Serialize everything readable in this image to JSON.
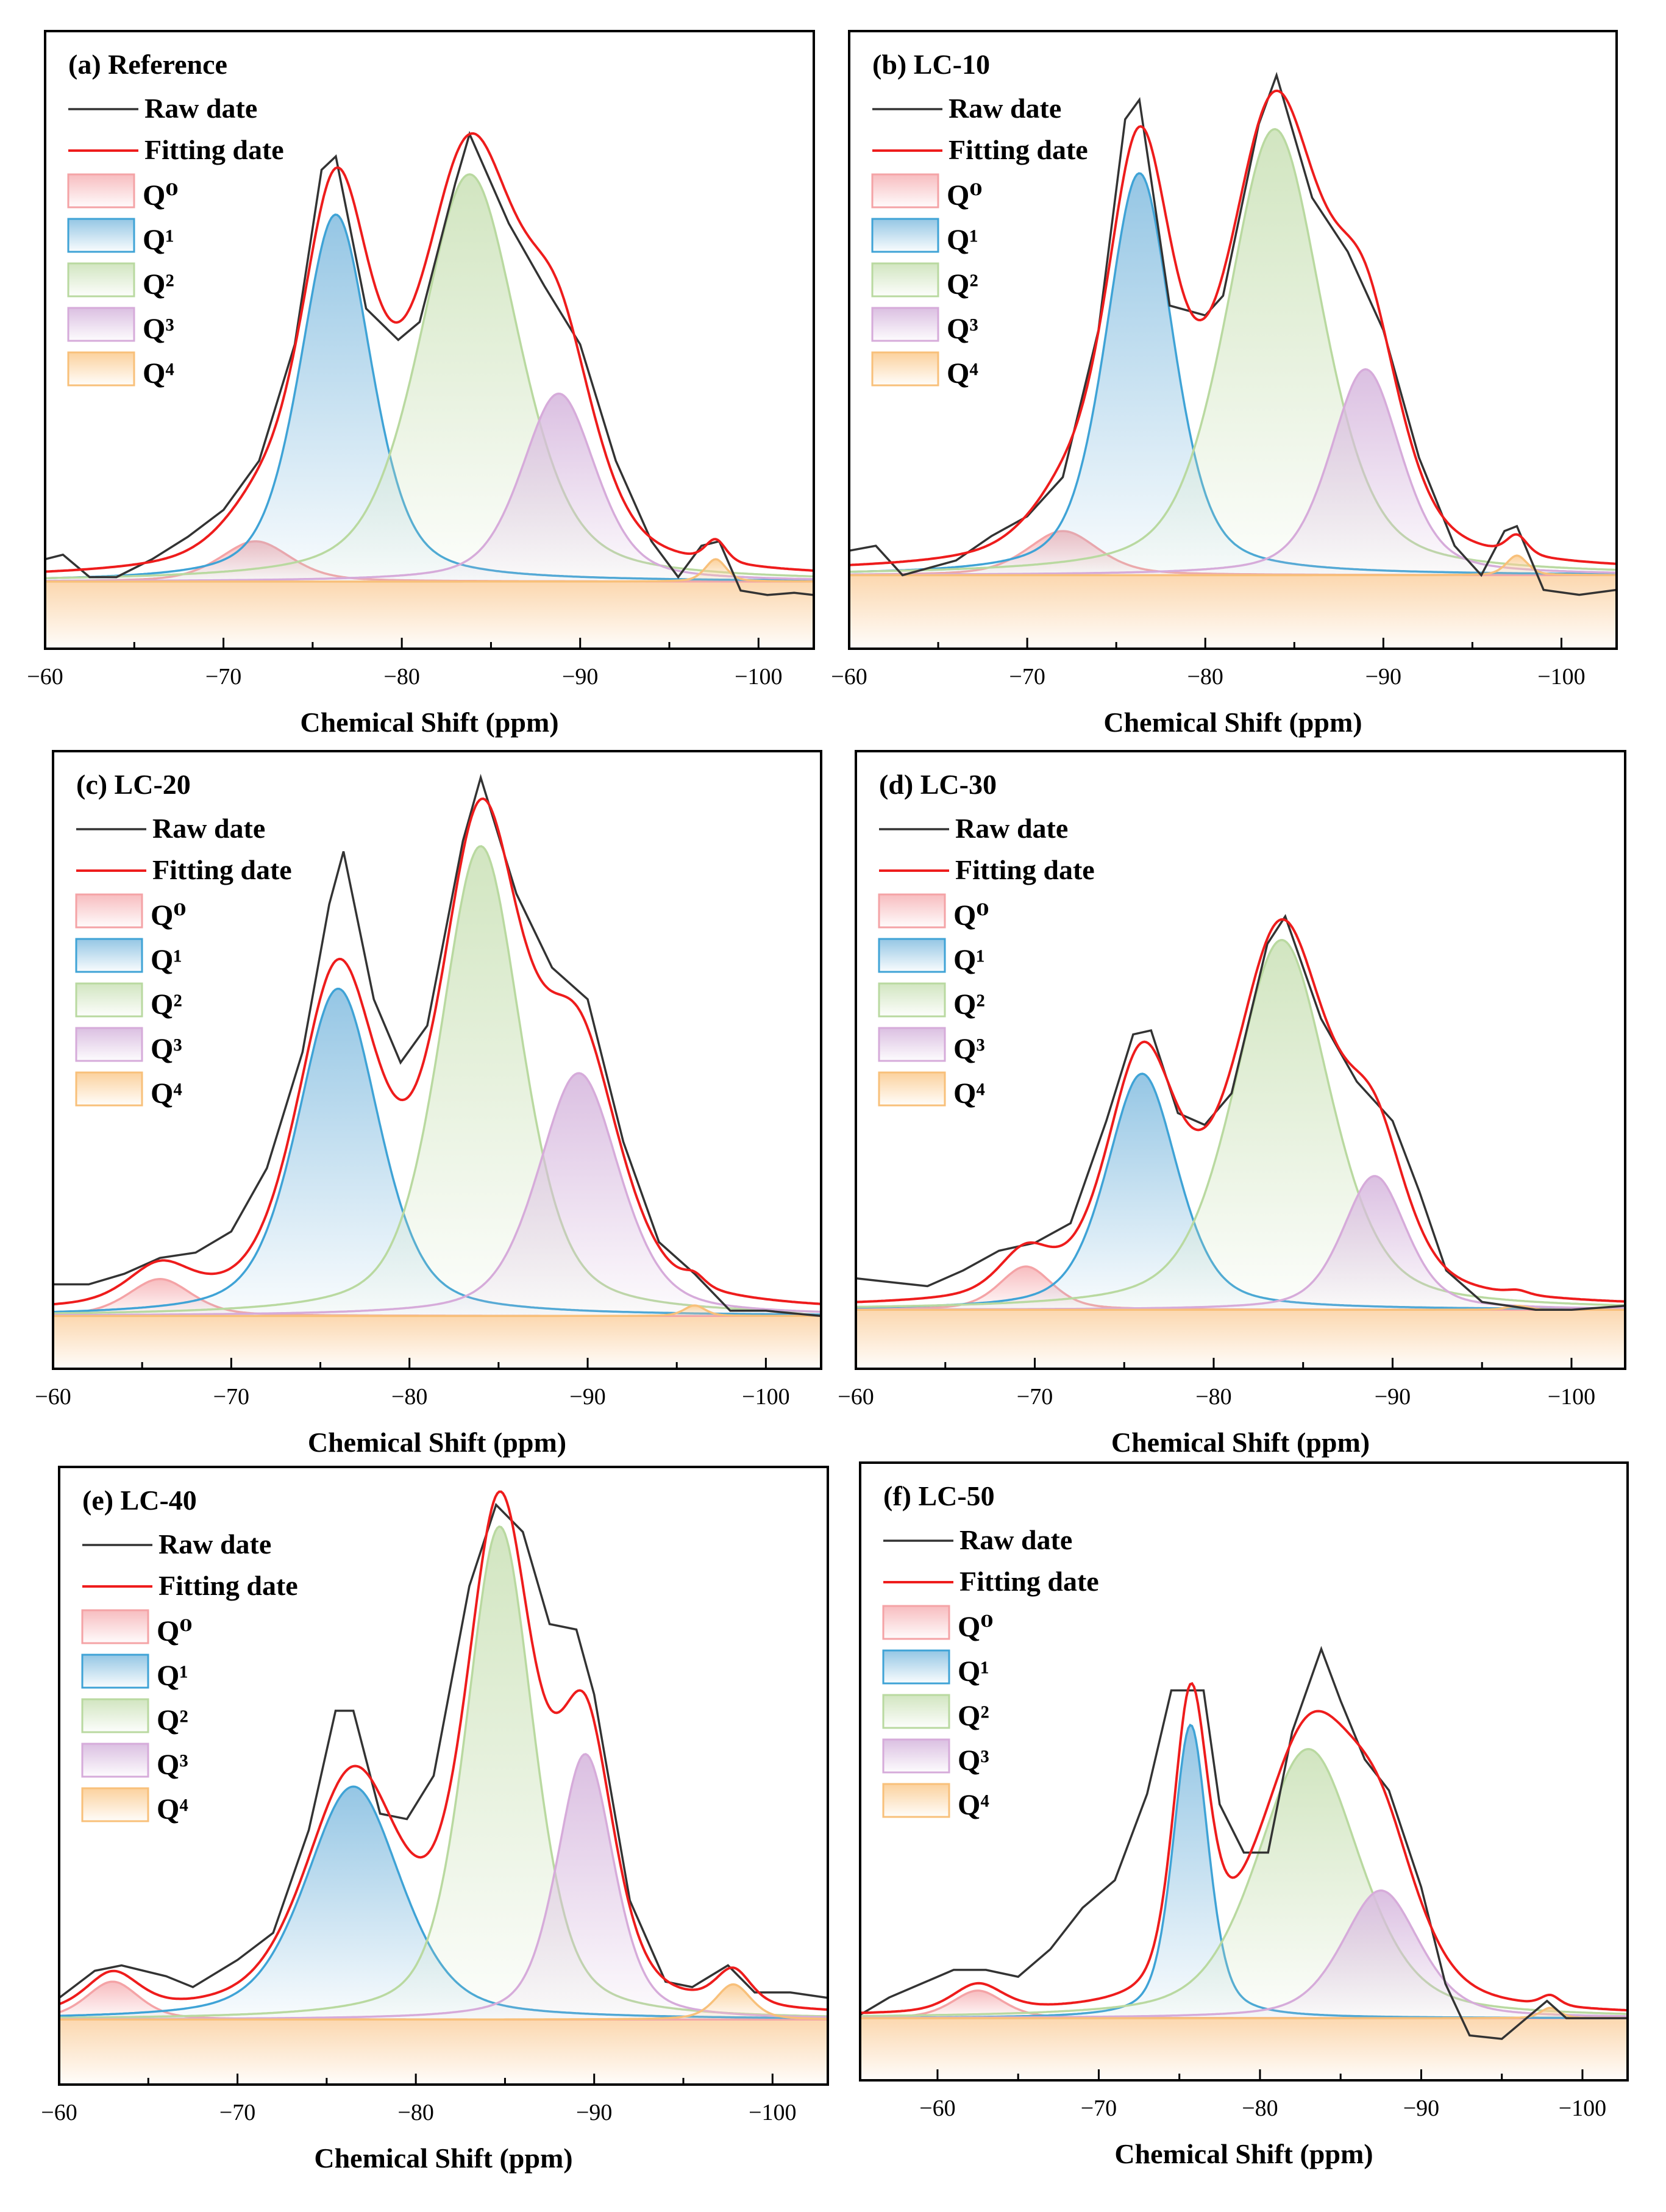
{
  "legend_labels": {
    "raw": "Raw date",
    "fit": "Fitting date",
    "q": [
      "Q⁰",
      "Q¹",
      "Q²",
      "Q³",
      "Q⁴"
    ]
  },
  "colors": {
    "raw": "#333333",
    "fit": "#ee1c1c",
    "q_stroke": [
      "#f4a3a6",
      "#3fa3d6",
      "#b9d9a0",
      "#d6abda",
      "#f8c07a"
    ],
    "q_fill": [
      "#f7b9bc",
      "#8fc3e3",
      "#cfe4bd",
      "#d9bce0",
      "#fbcf98"
    ]
  },
  "chart_data": [
    {
      "type": "area",
      "title": "(a) Reference",
      "xlabel": "Chemical Shift (ppm)",
      "ylabel": "",
      "xlim": [
        -60,
        -103.1
      ],
      "ylim": [
        -0.15,
        1.23
      ],
      "xticks": [
        -60,
        -70,
        -80,
        -90,
        -100
      ],
      "tick_labels": [
        "−60",
        "−70",
        "−80",
        "−90",
        "−100"
      ],
      "grid": false,
      "legend": "top-left",
      "peaks": [
        {
          "name": "Q0",
          "center": -71.8,
          "height": 0.09,
          "sigma": 2.0
        },
        {
          "name": "Q1",
          "center": -76.3,
          "height": 0.82,
          "sigma": 2.0
        },
        {
          "name": "Q2",
          "center": -83.8,
          "height": 0.91,
          "sigma": 2.8
        },
        {
          "name": "Q3",
          "center": -88.8,
          "height": 0.42,
          "sigma": 2.1
        },
        {
          "name": "Q4",
          "center": -97.6,
          "height": 0.05,
          "sigma": 0.6
        }
      ],
      "raw": [
        [
          -60,
          0.05
        ],
        [
          -61,
          0.06
        ],
        [
          -62.5,
          0.01
        ],
        [
          -64,
          0.01
        ],
        [
          -66,
          0.05
        ],
        [
          -68,
          0.1
        ],
        [
          -70,
          0.16
        ],
        [
          -72,
          0.27
        ],
        [
          -74,
          0.53
        ],
        [
          -75.5,
          0.92
        ],
        [
          -76.3,
          0.95
        ],
        [
          -78,
          0.61
        ],
        [
          -79.8,
          0.54
        ],
        [
          -81,
          0.58
        ],
        [
          -83,
          0.89
        ],
        [
          -83.8,
          1.0
        ],
        [
          -86,
          0.8
        ],
        [
          -88,
          0.66
        ],
        [
          -90,
          0.53
        ],
        [
          -92,
          0.27
        ],
        [
          -94,
          0.09
        ],
        [
          -95.5,
          0.01
        ],
        [
          -96.8,
          0.08
        ],
        [
          -97.8,
          0.09
        ],
        [
          -99,
          -0.02
        ],
        [
          -100.5,
          -0.03
        ],
        [
          -102,
          -0.025
        ],
        [
          -103.1,
          -0.03
        ]
      ]
    },
    {
      "type": "area",
      "title": "(b) LC-10",
      "xlabel": "Chemical Shift (ppm)",
      "ylabel": "",
      "xlim": [
        -60,
        -103.1
      ],
      "ylim": [
        -0.15,
        1.11
      ],
      "xticks": [
        -60,
        -70,
        -80,
        -90,
        -100
      ],
      "tick_labels": [
        "−60",
        "−70",
        "−80",
        "−90",
        "−100"
      ],
      "grid": false,
      "legend": "top-left",
      "peaks": [
        {
          "name": "Q0",
          "center": -72.0,
          "height": 0.09,
          "sigma": 2.0
        },
        {
          "name": "Q1",
          "center": -76.3,
          "height": 0.82,
          "sigma": 1.9
        },
        {
          "name": "Q2",
          "center": -83.9,
          "height": 0.91,
          "sigma": 2.7
        },
        {
          "name": "Q3",
          "center": -89.0,
          "height": 0.42,
          "sigma": 2.0
        },
        {
          "name": "Q4",
          "center": -97.5,
          "height": 0.04,
          "sigma": 0.6
        }
      ],
      "raw": [
        [
          -60,
          0.05
        ],
        [
          -61.5,
          0.06
        ],
        [
          -63,
          0.0
        ],
        [
          -66,
          0.03
        ],
        [
          -68,
          0.08
        ],
        [
          -70,
          0.12
        ],
        [
          -72,
          0.2
        ],
        [
          -74,
          0.5
        ],
        [
          -75.5,
          0.93
        ],
        [
          -76.3,
          0.97
        ],
        [
          -78,
          0.55
        ],
        [
          -80,
          0.53
        ],
        [
          -81,
          0.57
        ],
        [
          -83,
          0.92
        ],
        [
          -84,
          1.02
        ],
        [
          -86,
          0.77
        ],
        [
          -88,
          0.66
        ],
        [
          -90,
          0.5
        ],
        [
          -92,
          0.24
        ],
        [
          -94,
          0.06
        ],
        [
          -95.5,
          0.0
        ],
        [
          -96.8,
          0.09
        ],
        [
          -97.5,
          0.1
        ],
        [
          -99,
          -0.03
        ],
        [
          -101,
          -0.04
        ],
        [
          -103.1,
          -0.03
        ]
      ]
    },
    {
      "type": "area",
      "title": "(c) LC-20",
      "xlabel": "Chemical Shift (ppm)",
      "ylabel": "",
      "xlim": [
        -60,
        -103.1
      ],
      "ylim": [
        -0.1,
        1.07
      ],
      "xticks": [
        -60,
        -70,
        -80,
        -90,
        -100
      ],
      "tick_labels": [
        "−60",
        "−70",
        "−80",
        "−90",
        "−100"
      ],
      "grid": false,
      "legend": "top-left",
      "peaks": [
        {
          "name": "Q0",
          "center": -66.0,
          "height": 0.07,
          "sigma": 1.8
        },
        {
          "name": "Q1",
          "center": -76.0,
          "height": 0.62,
          "sigma": 2.3
        },
        {
          "name": "Q2",
          "center": -84.0,
          "height": 0.89,
          "sigma": 2.3
        },
        {
          "name": "Q3",
          "center": -89.5,
          "height": 0.46,
          "sigma": 2.3
        },
        {
          "name": "Q4",
          "center": -96.0,
          "height": 0.02,
          "sigma": 0.6
        }
      ],
      "raw": [
        [
          -60,
          0.06
        ],
        [
          -62,
          0.06
        ],
        [
          -64,
          0.08
        ],
        [
          -66,
          0.11
        ],
        [
          -68,
          0.12
        ],
        [
          -70,
          0.16
        ],
        [
          -72,
          0.28
        ],
        [
          -74,
          0.5
        ],
        [
          -75.5,
          0.78
        ],
        [
          -76.3,
          0.88
        ],
        [
          -78,
          0.6
        ],
        [
          -79.5,
          0.48
        ],
        [
          -81,
          0.55
        ],
        [
          -83,
          0.9
        ],
        [
          -84,
          1.02
        ],
        [
          -86,
          0.8
        ],
        [
          -88,
          0.66
        ],
        [
          -90,
          0.6
        ],
        [
          -92,
          0.33
        ],
        [
          -94,
          0.14
        ],
        [
          -96,
          0.08
        ],
        [
          -98,
          0.01
        ],
        [
          -100,
          0.01
        ],
        [
          -103.1,
          0.0
        ]
      ]
    },
    {
      "type": "area",
      "title": "(d) LC-30",
      "xlabel": "Chemical Shift (ppm)",
      "ylabel": "",
      "xlim": [
        -60,
        -103.0
      ],
      "ylim": [
        -0.15,
        1.42
      ],
      "xticks": [
        -60,
        -70,
        -80,
        -90,
        -100
      ],
      "tick_labels": [
        "−60",
        "−70",
        "−80",
        "−90",
        "−100"
      ],
      "grid": false,
      "legend": "top-left",
      "peaks": [
        {
          "name": "Q0",
          "center": -69.5,
          "height": 0.11,
          "sigma": 1.5
        },
        {
          "name": "Q1",
          "center": -76.0,
          "height": 0.6,
          "sigma": 2.0
        },
        {
          "name": "Q2",
          "center": -83.8,
          "height": 0.94,
          "sigma": 2.7
        },
        {
          "name": "Q3",
          "center": -89.0,
          "height": 0.34,
          "sigma": 1.8
        },
        {
          "name": "Q4",
          "center": -97.0,
          "height": 0.01,
          "sigma": 0.6
        }
      ],
      "raw": [
        [
          -60,
          0.08
        ],
        [
          -62,
          0.07
        ],
        [
          -64,
          0.06
        ],
        [
          -66,
          0.1
        ],
        [
          -68,
          0.15
        ],
        [
          -70,
          0.17
        ],
        [
          -72,
          0.22
        ],
        [
          -74,
          0.48
        ],
        [
          -75.5,
          0.7
        ],
        [
          -76.5,
          0.71
        ],
        [
          -78,
          0.5
        ],
        [
          -79.5,
          0.47
        ],
        [
          -81,
          0.55
        ],
        [
          -83,
          0.93
        ],
        [
          -84,
          1.0
        ],
        [
          -86,
          0.74
        ],
        [
          -88,
          0.58
        ],
        [
          -90,
          0.48
        ],
        [
          -91.5,
          0.3
        ],
        [
          -93,
          0.1
        ],
        [
          -95,
          0.02
        ],
        [
          -98,
          0.0
        ],
        [
          -100,
          0.0
        ],
        [
          -103,
          0.01
        ]
      ]
    },
    {
      "type": "area",
      "title": "(e) LC-40",
      "xlabel": "Chemical Shift (ppm)",
      "ylabel": "",
      "xlim": [
        -60,
        -103.1
      ],
      "ylim": [
        -0.12,
        1.02
      ],
      "xticks": [
        -60,
        -70,
        -80,
        -90,
        -100
      ],
      "tick_labels": [
        "−60",
        "−70",
        "−80",
        "−90",
        "−100"
      ],
      "grid": false,
      "legend": "top-left",
      "peaks": [
        {
          "name": "Q0",
          "center": -63.0,
          "height": 0.07,
          "sigma": 1.5
        },
        {
          "name": "Q1",
          "center": -76.5,
          "height": 0.43,
          "sigma": 2.7
        },
        {
          "name": "Q2",
          "center": -84.7,
          "height": 0.91,
          "sigma": 1.9
        },
        {
          "name": "Q3",
          "center": -89.5,
          "height": 0.49,
          "sigma": 1.6
        },
        {
          "name": "Q4",
          "center": -97.8,
          "height": 0.065,
          "sigma": 1.0
        }
      ],
      "raw": [
        [
          -60,
          0.04
        ],
        [
          -62,
          0.09
        ],
        [
          -63.5,
          0.1
        ],
        [
          -66,
          0.08
        ],
        [
          -67.5,
          0.06
        ],
        [
          -70,
          0.11
        ],
        [
          -72,
          0.16
        ],
        [
          -74,
          0.35
        ],
        [
          -75.5,
          0.57
        ],
        [
          -76.5,
          0.57
        ],
        [
          -78,
          0.38
        ],
        [
          -79.5,
          0.37
        ],
        [
          -81,
          0.45
        ],
        [
          -83,
          0.8
        ],
        [
          -84.5,
          0.95
        ],
        [
          -86,
          0.9
        ],
        [
          -87.5,
          0.73
        ],
        [
          -89,
          0.72
        ],
        [
          -90,
          0.6
        ],
        [
          -92,
          0.22
        ],
        [
          -94,
          0.07
        ],
        [
          -95.5,
          0.06
        ],
        [
          -97.5,
          0.1
        ],
        [
          -99,
          0.05
        ],
        [
          -101,
          0.05
        ],
        [
          -103.1,
          0.04
        ]
      ]
    },
    {
      "type": "area",
      "title": "(f) LC-50",
      "xlabel": "Chemical Shift (ppm)",
      "ylabel": "",
      "xlim": [
        -55.2,
        -102.8
      ],
      "ylim": [
        -0.18,
        1.61
      ],
      "xticks": [
        -60,
        -70,
        -80,
        -90,
        -100
      ],
      "tick_labels": [
        "−60",
        "−70",
        "−80",
        "−90",
        "−100"
      ],
      "grid": false,
      "legend": "top-left",
      "peaks": [
        {
          "name": "Q0",
          "center": -62.5,
          "height": 0.08,
          "sigma": 1.6
        },
        {
          "name": "Q1",
          "center": -75.7,
          "height": 0.85,
          "sigma": 1.1
        },
        {
          "name": "Q2",
          "center": -83.0,
          "height": 0.78,
          "sigma": 3.2
        },
        {
          "name": "Q3",
          "center": -87.5,
          "height": 0.37,
          "sigma": 2.4
        },
        {
          "name": "Q4",
          "center": -98.0,
          "height": 0.03,
          "sigma": 0.6
        }
      ],
      "raw": [
        [
          -55.2,
          0.01
        ],
        [
          -57,
          0.06
        ],
        [
          -59,
          0.1
        ],
        [
          -61,
          0.14
        ],
        [
          -63,
          0.14
        ],
        [
          -65,
          0.12
        ],
        [
          -67,
          0.2
        ],
        [
          -69,
          0.32
        ],
        [
          -71,
          0.4
        ],
        [
          -73,
          0.65
        ],
        [
          -74.5,
          0.95
        ],
        [
          -76.5,
          0.95
        ],
        [
          -77.5,
          0.62
        ],
        [
          -79,
          0.48
        ],
        [
          -80.5,
          0.48
        ],
        [
          -82,
          0.83
        ],
        [
          -83.8,
          1.07
        ],
        [
          -85,
          0.92
        ],
        [
          -86.5,
          0.75
        ],
        [
          -88,
          0.66
        ],
        [
          -90,
          0.38
        ],
        [
          -91.5,
          0.1
        ],
        [
          -93,
          -0.05
        ],
        [
          -95,
          -0.06
        ],
        [
          -97.8,
          0.05
        ],
        [
          -99,
          0.0
        ],
        [
          -101,
          0.0
        ],
        [
          -102.8,
          0.0
        ]
      ]
    }
  ]
}
